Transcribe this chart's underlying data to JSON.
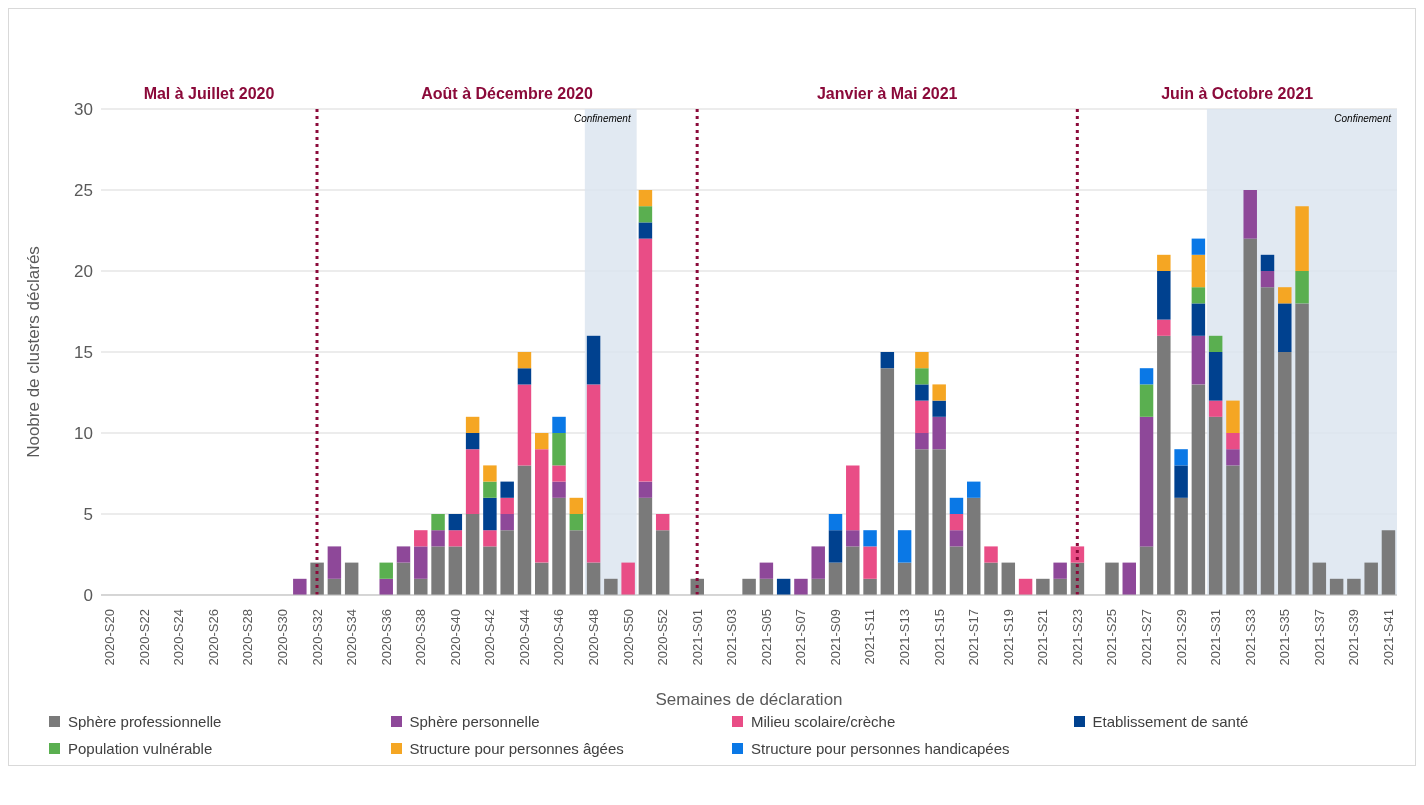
{
  "chart_data": {
    "type": "bar",
    "stacked": true,
    "xlabel": "Semaines de déclaration",
    "ylabel": "Noobre de clusters déclarés",
    "categories": [
      "2020-S20",
      null,
      "2020-S22",
      null,
      "2020-S24",
      null,
      "2020-S26",
      null,
      "2020-S28",
      null,
      "2020-S30",
      null,
      "2020-S32",
      null,
      "2020-S34",
      null,
      "2020-S36",
      null,
      "2020-S38",
      null,
      "2020-S40",
      null,
      "2020-S42",
      null,
      "2020-S44",
      null,
      "2020-S46",
      null,
      "2020-S48",
      null,
      "2020-S50",
      null,
      "2020-S52",
      null,
      "2021-S01",
      null,
      "2021-S03",
      null,
      "2021-S05",
      null,
      "2021-S07",
      null,
      "2021-S09",
      null,
      "2021-S11",
      null,
      "2021-S13",
      null,
      "2021-S15",
      null,
      "2021-S17",
      null,
      "2021-S19",
      null,
      "2021-S21",
      null,
      "2021-S23",
      null,
      "2021-S25",
      null,
      "2021-S27",
      null,
      "2021-S29",
      null,
      "2021-S31",
      null,
      "2021-S33",
      null,
      "2021-S35",
      null,
      "2021-S37",
      null,
      "2021-S39",
      null,
      "2021-S41"
    ],
    "series": [
      {
        "name": "Sphère professionnelle",
        "color": "#7a7a7a",
        "values": [
          null,
          null,
          null,
          null,
          null,
          null,
          null,
          null,
          null,
          null,
          null,
          null,
          2,
          1,
          2,
          null,
          null,
          2,
          1,
          3,
          3,
          5,
          3,
          4,
          8,
          2,
          6,
          4,
          2,
          1,
          null,
          6,
          4,
          null,
          1,
          null,
          null,
          1,
          1,
          null,
          null,
          1,
          2,
          3,
          1,
          14,
          2,
          9,
          9,
          3,
          6,
          2,
          2,
          null,
          1,
          1,
          2,
          null,
          2,
          null,
          3,
          16,
          6,
          13,
          11,
          8,
          22,
          19,
          15,
          18,
          2,
          1,
          1,
          2,
          4
        ]
      },
      {
        "name": "Sphère personnelle",
        "color": "#8e4899",
        "values": [
          null,
          null,
          null,
          null,
          null,
          null,
          null,
          null,
          null,
          null,
          null,
          1,
          null,
          2,
          null,
          null,
          1,
          1,
          2,
          1,
          null,
          null,
          null,
          1,
          null,
          null,
          1,
          null,
          null,
          null,
          null,
          1,
          null,
          null,
          null,
          null,
          null,
          null,
          1,
          null,
          1,
          2,
          null,
          1,
          null,
          null,
          null,
          1,
          2,
          1,
          null,
          null,
          null,
          null,
          null,
          1,
          null,
          null,
          null,
          2,
          8,
          null,
          null,
          3,
          null,
          1,
          3,
          1,
          null,
          null,
          null,
          null,
          null,
          null,
          null
        ]
      },
      {
        "name": "Milieu scolaire/crèche",
        "color": "#e94d86",
        "values": [
          null,
          null,
          null,
          null,
          null,
          null,
          null,
          null,
          null,
          null,
          null,
          null,
          null,
          null,
          null,
          null,
          null,
          null,
          1,
          null,
          1,
          4,
          1,
          1,
          5,
          7,
          1,
          null,
          11,
          null,
          2,
          15,
          1,
          null,
          null,
          null,
          null,
          null,
          null,
          null,
          null,
          null,
          null,
          4,
          2,
          null,
          null,
          2,
          null,
          1,
          null,
          1,
          null,
          1,
          null,
          null,
          1,
          null,
          null,
          null,
          null,
          1,
          null,
          null,
          1,
          1,
          null,
          null,
          null,
          null,
          null,
          null,
          null,
          null,
          null
        ]
      },
      {
        "name": "Etablissement de santé",
        "color": "#00418f",
        "values": [
          null,
          null,
          null,
          null,
          null,
          null,
          null,
          null,
          null,
          null,
          null,
          null,
          null,
          null,
          null,
          null,
          null,
          null,
          null,
          null,
          1,
          1,
          2,
          1,
          1,
          null,
          null,
          null,
          3,
          null,
          null,
          1,
          null,
          null,
          null,
          null,
          null,
          null,
          null,
          1,
          null,
          null,
          2,
          null,
          null,
          1,
          null,
          1,
          1,
          null,
          null,
          null,
          null,
          null,
          null,
          null,
          null,
          null,
          null,
          null,
          null,
          3,
          2,
          2,
          3,
          null,
          null,
          1,
          3,
          null,
          null,
          null,
          null,
          null,
          null
        ]
      },
      {
        "name": "Population vulnérable",
        "color": "#5aaf50",
        "values": [
          null,
          null,
          null,
          null,
          null,
          null,
          null,
          null,
          null,
          null,
          null,
          null,
          null,
          null,
          null,
          null,
          1,
          null,
          null,
          1,
          null,
          null,
          1,
          null,
          null,
          null,
          2,
          1,
          null,
          null,
          null,
          1,
          null,
          null,
          null,
          null,
          null,
          null,
          null,
          null,
          null,
          null,
          null,
          null,
          null,
          null,
          null,
          1,
          null,
          null,
          null,
          null,
          null,
          null,
          null,
          null,
          null,
          null,
          null,
          null,
          2,
          null,
          null,
          1,
          1,
          null,
          null,
          null,
          null,
          2,
          null,
          null,
          null,
          null,
          null
        ]
      },
      {
        "name": "Structure pour personnes âgées",
        "color": "#f5a623",
        "values": [
          null,
          null,
          null,
          null,
          null,
          null,
          null,
          null,
          null,
          null,
          null,
          null,
          null,
          null,
          null,
          null,
          null,
          null,
          null,
          null,
          null,
          1,
          1,
          null,
          1,
          1,
          null,
          1,
          null,
          null,
          null,
          1,
          null,
          null,
          null,
          null,
          null,
          null,
          null,
          null,
          null,
          null,
          null,
          null,
          null,
          null,
          null,
          1,
          1,
          null,
          null,
          null,
          null,
          null,
          null,
          null,
          null,
          null,
          null,
          null,
          null,
          1,
          null,
          2,
          null,
          2,
          null,
          null,
          1,
          4,
          null,
          null,
          null,
          null,
          null
        ]
      },
      {
        "name": "Structure pour personnes handicapées",
        "color": "#0a78e6",
        "values": [
          null,
          null,
          null,
          null,
          null,
          null,
          null,
          null,
          null,
          null,
          null,
          null,
          null,
          null,
          null,
          null,
          null,
          null,
          null,
          null,
          null,
          null,
          null,
          null,
          null,
          null,
          1,
          null,
          null,
          null,
          null,
          null,
          null,
          null,
          null,
          null,
          null,
          null,
          null,
          null,
          null,
          null,
          1,
          null,
          1,
          null,
          2,
          null,
          null,
          1,
          1,
          null,
          null,
          null,
          null,
          null,
          null,
          null,
          null,
          null,
          1,
          null,
          1,
          1,
          null,
          null,
          null,
          null,
          null,
          null,
          null,
          null,
          null,
          null,
          null
        ]
      }
    ],
    "ylim": [
      0,
      30
    ],
    "yticks": [
      0,
      5,
      10,
      15,
      20,
      25,
      30
    ],
    "grid": "y",
    "legend": "bottom",
    "ref_lines": [
      {
        "axis": "x",
        "value": "2020-S32",
        "color": "#8b0a3a",
        "line_style": "dotted"
      },
      {
        "axis": "x",
        "value": "2021-S01",
        "color": "#8b0a3a",
        "line_style": "dotted"
      },
      {
        "axis": "x",
        "value": "2021-S23",
        "color": "#8b0a3a",
        "line_style": "dotted"
      }
    ],
    "bands": [
      {
        "axis": "x",
        "from": "2020-S48",
        "to": "2020-S50",
        "label": "Confinement",
        "color": "#dce5f0"
      },
      {
        "axis": "x",
        "from": "2021-S31",
        "to": "2021-S41",
        "label": "Confinement",
        "color": "#dce5f0"
      }
    ],
    "annotations": [
      "Mal à Juillet 2020",
      "Août à Décembre 2020",
      "Janvier à Mai 2021",
      "Juin à Octobre 2021"
    ]
  }
}
